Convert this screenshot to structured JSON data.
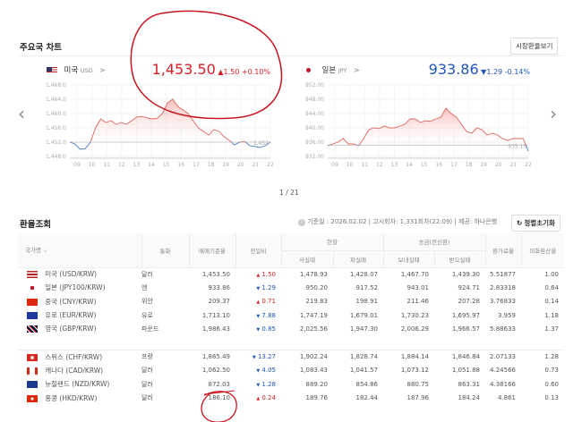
{
  "header": {
    "title": "주요국 차트",
    "market_button": "시장환율보기"
  },
  "charts": [
    {
      "country": "미국",
      "code": "USD",
      "arrow": ">",
      "price": "1,453.50",
      "change": "▲1.50",
      "pct": "+0.10%",
      "direction": "up",
      "baseline_label": "1,452",
      "y_ticks": [
        "1,468.0",
        "1,464.0",
        "1,460.0",
        "1,456.0",
        "1,452.0",
        "1,448.0"
      ]
    },
    {
      "country": "일본",
      "code": "JPY",
      "arrow": ">",
      "price": "933.86",
      "change": "▼1.29",
      "pct": "-0.14%",
      "direction": "down",
      "baseline_label": "935.15",
      "y_ticks": [
        "952.00",
        "948.00",
        "944.00",
        "940.00",
        "936.00",
        "932.00"
      ]
    }
  ],
  "chart_data": [
    {
      "type": "line",
      "series_label": "USD",
      "ylim": [
        1448,
        1468
      ],
      "baseline": 1452,
      "x_ticks": [
        "09",
        "10",
        "11",
        "12",
        "13",
        "14",
        "15",
        "16",
        "17",
        "18",
        "19",
        "20",
        "21",
        "22"
      ],
      "values": [
        1452,
        1451.5,
        1450,
        1450.2,
        1452,
        1456,
        1458.5,
        1457.5,
        1458,
        1457,
        1457.5,
        1457,
        1458,
        1459,
        1459.2,
        1458.8,
        1458.5,
        1458.7,
        1460,
        1463,
        1464,
        1462,
        1461,
        1460,
        1458,
        1456,
        1455,
        1454,
        1455.5,
        1455,
        1453.5,
        1452.5,
        1451.2,
        1452,
        1452.2,
        1451,
        1450.8,
        1450.5,
        1451,
        1452
      ]
    },
    {
      "type": "line",
      "series_label": "JPY",
      "ylim": [
        932,
        952
      ],
      "baseline": 935.15,
      "x_ticks": [
        "09",
        "10",
        "11",
        "12",
        "13",
        "14",
        "15",
        "16",
        "17",
        "18",
        "19",
        "20",
        "21",
        "22"
      ],
      "values": [
        935,
        935.5,
        936,
        937,
        935.5,
        935.5,
        935,
        937,
        939.5,
        940,
        939.8,
        940.5,
        940,
        940,
        940.5,
        941,
        942.5,
        942.5,
        941.5,
        942,
        941.8,
        942.5,
        943,
        945.5,
        944,
        943,
        941,
        939,
        938.5,
        940,
        939.5,
        938,
        938.5,
        938,
        937,
        936.5,
        937,
        937,
        937,
        933.5
      ]
    }
  ],
  "pager": "1 / 21",
  "nav": {
    "prev": "‹",
    "next": "›"
  },
  "table_section": {
    "title": "환율조회",
    "info_icon": "info-icon",
    "date": "기준일 : 2026.02.02",
    "notice": "고시회차: 1,331회차(22:09)",
    "provider": "제공: 하나은행",
    "reset_button": "정렬초기화",
    "headers": {
      "country": "국가명",
      "currency": "통화",
      "base": "매매기준율",
      "diff": "전일비",
      "cash": "현찰",
      "cash_buy": "사실때",
      "cash_sell": "파실때",
      "wire": "송금(전신환)",
      "send": "보내실때",
      "receive": "받으실때",
      "fee": "환가료율",
      "usd": "미화환산율"
    },
    "rows": [
      {
        "flag": "us",
        "name": "미국 (USD/KRW)",
        "cur": "달러",
        "base": "1,453.50",
        "dir": "up",
        "diff": "1.50",
        "cb": "1,478.93",
        "cs": "1,428.07",
        "send": "1,467.70",
        "recv": "1,439.30",
        "fee": "5.51877",
        "usd": "1.00"
      },
      {
        "flag": "jp",
        "name": "일본 (JPY100/KRW)",
        "cur": "엔",
        "base": "933.86",
        "dir": "down",
        "diff": "1.29",
        "cb": "950.20",
        "cs": "917.52",
        "send": "943.01",
        "recv": "924.71",
        "fee": "2.83318",
        "usd": "0.64"
      },
      {
        "flag": "cn",
        "name": "중국 (CNY/KRW)",
        "cur": "위안",
        "base": "209.37",
        "dir": "up",
        "diff": "0.71",
        "cb": "219.83",
        "cs": "198.91",
        "send": "211.46",
        "recv": "207.28",
        "fee": "3.76833",
        "usd": "0.14"
      },
      {
        "flag": "eu",
        "name": "유로 (EUR/KRW)",
        "cur": "유로",
        "base": "1,713.10",
        "dir": "down",
        "diff": "7.88",
        "cb": "1,747.19",
        "cs": "1,679.01",
        "send": "1,730.23",
        "recv": "1,695.97",
        "fee": "3.959",
        "usd": "1.18"
      },
      {
        "flag": "gb",
        "name": "영국 (GBP/KRW)",
        "cur": "파운드",
        "base": "1,986.43",
        "dir": "down",
        "diff": "0.85",
        "cb": "2,025.56",
        "cs": "1,947.30",
        "send": "2,006.29",
        "recv": "1,966.57",
        "fee": "5.88633",
        "usd": "1.37"
      },
      {
        "flag": "ch",
        "name": "스위스 (CHF/KRW)",
        "cur": "프랑",
        "base": "1,865.49",
        "dir": "down",
        "diff": "13.27",
        "cb": "1,902.24",
        "cs": "1,828.74",
        "send": "1,884.14",
        "recv": "1,846.84",
        "fee": "2.07133",
        "usd": "1.28"
      },
      {
        "flag": "ca",
        "name": "캐나다 (CAD/KRW)",
        "cur": "달러",
        "base": "1,062.50",
        "dir": "down",
        "diff": "4.05",
        "cb": "1,083.43",
        "cs": "1,041.57",
        "send": "1,073.12",
        "recv": "1,051.88",
        "fee": "4.24566",
        "usd": "0.73"
      },
      {
        "flag": "nz",
        "name": "뉴질랜드 (NZD/KRW)",
        "cur": "달러",
        "base": "872.03",
        "dir": "down",
        "diff": "1.28",
        "cb": "889.20",
        "cs": "854.86",
        "send": "880.75",
        "recv": "863.31",
        "fee": "4.38166",
        "usd": "0.60"
      },
      {
        "flag": "hk",
        "name": "홍콩 (HKD/KRW)",
        "cur": "달러",
        "base": "186.10",
        "dir": "up",
        "diff": "0.24",
        "cb": "189.76",
        "cs": "182.44",
        "send": "187.96",
        "recv": "184.24",
        "fee": "4.861",
        "usd": "0.13"
      }
    ]
  },
  "colors": {
    "up": "#d61f26",
    "down": "#1f56b5",
    "annotation": "#c8141e"
  }
}
